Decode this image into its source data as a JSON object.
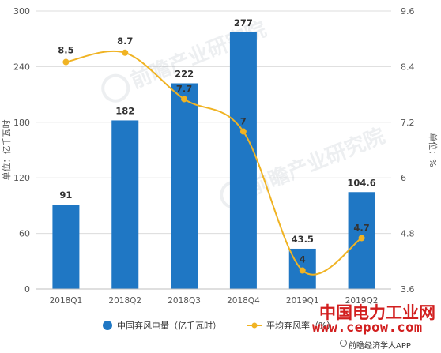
{
  "chart_data": {
    "type": "bar+line",
    "categories": [
      "2018Q1",
      "2018Q2",
      "2018Q3",
      "2018Q4",
      "2019Q1",
      "2019Q2"
    ],
    "series": [
      {
        "name": "中国弃风电量（亿千瓦时）",
        "type": "bar",
        "axis": "left",
        "values": [
          91,
          182,
          222,
          277,
          43.5,
          104.6
        ],
        "labels": [
          "91",
          "182",
          "222",
          "277",
          "43.5",
          "104.6"
        ],
        "color": "#1f77c4"
      },
      {
        "name": "平均弃风率（%）",
        "type": "line",
        "axis": "right",
        "values": [
          8.5,
          8.7,
          7.7,
          7,
          4,
          4.7
        ],
        "labels": [
          "8.5",
          "8.7",
          "7.7",
          "7",
          "4",
          "4.7"
        ],
        "color": "#f0b323"
      }
    ],
    "ylabel_left": "单位：亿千瓦时",
    "ylabel_right": "单位：%",
    "ylim_left": [
      0,
      300
    ],
    "ylim_right": [
      3.6,
      9.6
    ],
    "yticks_left": [
      "0",
      "60",
      "120",
      "180",
      "240",
      "300"
    ],
    "yticks_right": [
      "3.6",
      "4.8",
      "6",
      "7.2",
      "8.4",
      "9.6"
    ],
    "grid": true,
    "legend_position": "bottom"
  },
  "watermark": {
    "brand_cn": "中国电力工业网",
    "url": "www.cepow.com",
    "source": "前瞻经济学人APP",
    "logo_text": "前瞻产业研究院"
  }
}
